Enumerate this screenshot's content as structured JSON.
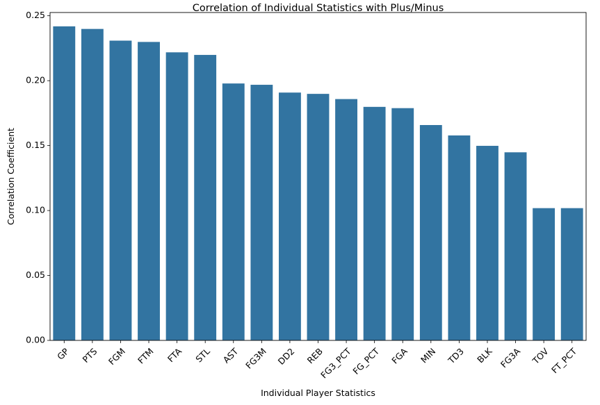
{
  "chart_data": {
    "type": "bar",
    "title": "Correlation of Individual Statistics with Plus/Minus",
    "xlabel": "Individual Player Statistics",
    "ylabel": "Correlation Coefficient",
    "categories": [
      "GP",
      "PTS",
      "FGM",
      "FTM",
      "FTA",
      "STL",
      "AST",
      "FG3M",
      "DD2",
      "REB",
      "FG3_PCT",
      "FG_PCT",
      "FGA",
      "MIN",
      "TD3",
      "BLK",
      "FG3A",
      "TOV",
      "FT_PCT"
    ],
    "values": [
      0.242,
      0.24,
      0.231,
      0.23,
      0.222,
      0.22,
      0.198,
      0.197,
      0.191,
      0.19,
      0.186,
      0.18,
      0.179,
      0.166,
      0.158,
      0.15,
      0.145,
      0.102,
      0.102
    ],
    "ylim": [
      0,
      0.2525
    ],
    "yticks": [
      0.0,
      0.05,
      0.1,
      0.15,
      0.2,
      0.25
    ],
    "ytick_labels": [
      "0.00",
      "0.05",
      "0.10",
      "0.15",
      "0.20",
      "0.25"
    ],
    "grid": false,
    "legend": "none",
    "bar_color": "#3274a1",
    "edge_color": "#ffffff"
  }
}
